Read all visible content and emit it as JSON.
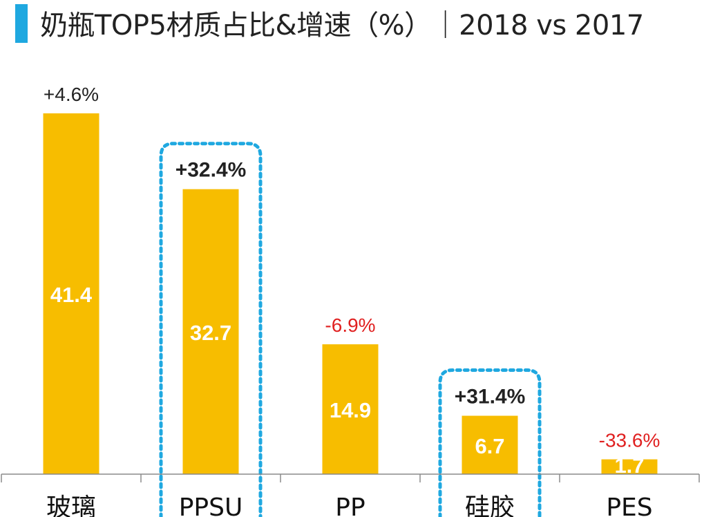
{
  "title": "奶瓶TOP5材质占比&增速（%）｜2018 vs 2017",
  "colors": {
    "bar": "#f7bd00",
    "accent": "#1fa8e0",
    "negative": "#e02020",
    "positive": "#222222",
    "axis": "#8a8a8a"
  },
  "chart_data": {
    "type": "bar",
    "title": "奶瓶TOP5材质占比&增速（%）｜2018 vs 2017",
    "categories": [
      "玻璃",
      "PPSU",
      "PP",
      "硅胶",
      "PES"
    ],
    "series": [
      {
        "values": [
          41.4,
          32.7,
          14.9,
          6.7,
          1.7
        ]
      }
    ],
    "growth_labels": [
      "+4.6%",
      "+32.4%",
      "-6.9%",
      "+31.4%",
      "-33.6%"
    ],
    "growth_values": [
      4.6,
      32.4,
      -6.9,
      31.4,
      -33.6
    ],
    "highlighted": [
      "PPSU",
      "硅胶"
    ],
    "xlabel": "",
    "ylabel": "",
    "ylim": [
      0,
      41.4
    ],
    "grid": false,
    "legend": "none"
  }
}
